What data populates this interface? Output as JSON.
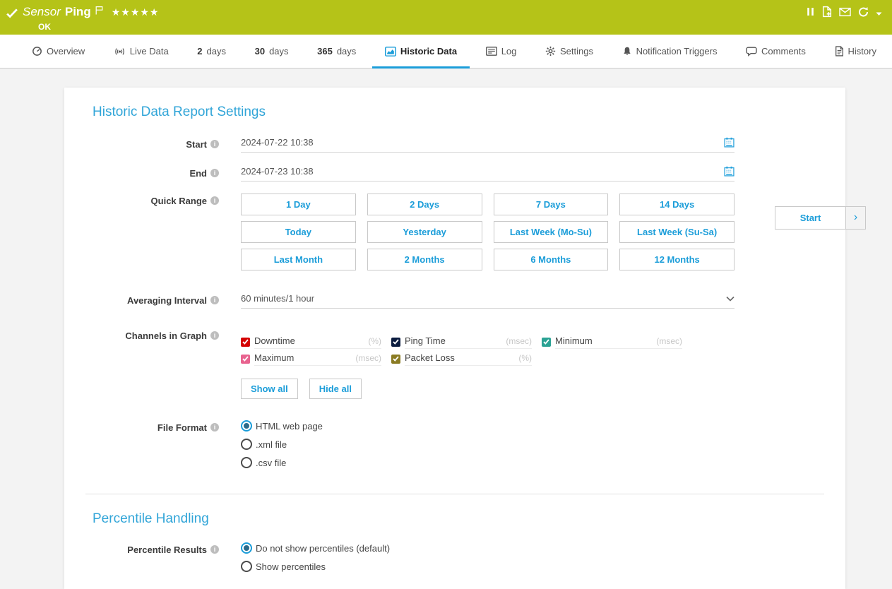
{
  "colors": {
    "header_bg": "#b5c318",
    "accent": "#1b9dd9",
    "heading": "#31a5d8",
    "active_tab_underline": "#1b9dd9"
  },
  "header": {
    "title_prefix": "Sensor",
    "title_name": "Ping",
    "stars": "★★★★★",
    "status_text": "OK",
    "action_icons": [
      "pause-icon",
      "report-icon",
      "email-icon",
      "refresh-icon",
      "dropdown-caret-icon"
    ]
  },
  "tabs": [
    {
      "id": "overview",
      "icon": "gauge-icon",
      "label": "Overview",
      "active": false
    },
    {
      "id": "live-data",
      "icon": "live-data-icon",
      "label": "Live Data",
      "active": false
    },
    {
      "id": "2-days",
      "bold": "2",
      "label": "days",
      "active": false
    },
    {
      "id": "30-days",
      "bold": "30",
      "label": "days",
      "active": false
    },
    {
      "id": "365-days",
      "bold": "365",
      "label": "days",
      "active": false
    },
    {
      "id": "historic-data",
      "icon": "chart-icon",
      "label": "Historic Data",
      "active": true
    },
    {
      "id": "log",
      "icon": "log-icon",
      "label": "Log",
      "active": false
    },
    {
      "id": "settings",
      "icon": "gear-icon",
      "label": "Settings",
      "active": false
    },
    {
      "id": "notification-triggers",
      "icon": "bell-icon",
      "label": "Notification Triggers",
      "active": false
    },
    {
      "id": "comments",
      "icon": "comment-icon",
      "label": "Comments",
      "active": false
    },
    {
      "id": "history",
      "icon": "history-icon",
      "label": "History",
      "active": false
    }
  ],
  "main": {
    "section1_title": "Historic Data Report Settings",
    "start": {
      "label": "Start",
      "value": "2024-07-22 10:38"
    },
    "end": {
      "label": "End",
      "value": "2024-07-23 10:38"
    },
    "quick_range": {
      "label": "Quick Range",
      "rows": [
        [
          "1 Day",
          "2 Days",
          "7 Days",
          "14 Days"
        ],
        [
          "Today",
          "Yesterday",
          "Last Week (Mo-Su)",
          "Last Week (Su-Sa)"
        ],
        [
          "Last Month",
          "2 Months",
          "6 Months",
          "12 Months"
        ]
      ]
    },
    "averaging": {
      "label": "Averaging Interval",
      "value": "60 minutes/1 hour"
    },
    "channels": {
      "label": "Channels in Graph",
      "items": [
        {
          "name": "Downtime",
          "unit": "(%)",
          "color": "#d40000",
          "checked": true
        },
        {
          "name": "Ping Time",
          "unit": "(msec)",
          "color": "#0b1c3f",
          "checked": true
        },
        {
          "name": "Minimum",
          "unit": "(msec)",
          "color": "#2ba294",
          "checked": true
        },
        {
          "name": "Maximum",
          "unit": "(msec)",
          "color": "#e8638f",
          "checked": true
        },
        {
          "name": "Packet Loss",
          "unit": "(%)",
          "color": "#8a7b23",
          "checked": true
        }
      ],
      "show_all": "Show all",
      "hide_all": "Hide all"
    },
    "file_format": {
      "label": "File Format",
      "options": [
        {
          "label": "HTML web page",
          "selected": true
        },
        {
          "label": ".xml file",
          "selected": false
        },
        {
          "label": ".csv file",
          "selected": false
        }
      ]
    },
    "section2_title": "Percentile Handling",
    "percentile": {
      "label": "Percentile Results",
      "options": [
        {
          "label": "Do not show percentiles (default)",
          "selected": true
        },
        {
          "label": "Show percentiles",
          "selected": false
        }
      ]
    },
    "start_button": {
      "label": "Start",
      "chevron": "›"
    }
  }
}
